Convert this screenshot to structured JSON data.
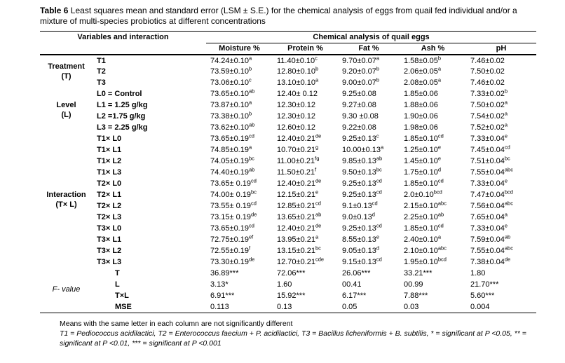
{
  "colors": {
    "background": "#ffffff",
    "text": "#000000",
    "rule": "#000000"
  },
  "caption": {
    "label": "Table 6",
    "text": " Least squares mean and standard error (LSM ± S.E.) for the chemical analysis of eggs from quail fed individual and/or a mixture of multi-species probiotics at different concentrations"
  },
  "header": {
    "variables": "Variables and interaction",
    "group": "Chemical analysis of quail eggs",
    "columns": [
      "Moisture %",
      "Protein %",
      "Fat %",
      "Ash %",
      "pH"
    ]
  },
  "groups": [
    {
      "label_lines": [
        "Treatment",
        "(T)"
      ],
      "rows": [
        {
          "label": "T1",
          "cells": [
            [
              "74.24±0.10",
              "a"
            ],
            [
              "11.40±0.10",
              "c"
            ],
            [
              "9.70±0.07",
              "a"
            ],
            [
              "1.58±0.05",
              "b"
            ],
            [
              "7.46±0.02",
              ""
            ]
          ]
        },
        {
          "label": "T2",
          "cells": [
            [
              "73.59±0.10",
              "b"
            ],
            [
              "12.80±0.10",
              "b"
            ],
            [
              "9.20±0.07",
              "b"
            ],
            [
              "2.06±0.05",
              "a"
            ],
            [
              "7.50±0.02",
              ""
            ]
          ]
        },
        {
          "label": "T3",
          "cells": [
            [
              "73.06±0.10",
              "c"
            ],
            [
              "13.10±0.10",
              "a"
            ],
            [
              "9.00±0.07",
              "b"
            ],
            [
              "2.08±0.05",
              "a"
            ],
            [
              "7.46±0.02",
              ""
            ]
          ]
        }
      ]
    },
    {
      "label_lines": [
        "Level",
        "(L)"
      ],
      "rows": [
        {
          "label": "L0 = Control",
          "cells": [
            [
              "73.65±0.10",
              "ab"
            ],
            [
              "12.40± 0.12",
              ""
            ],
            [
              "9.25±0.08",
              ""
            ],
            [
              "1.85±0.06",
              ""
            ],
            [
              "7.33±0.02",
              "b"
            ]
          ]
        },
        {
          "label": "L1 = 1.25 g/kg",
          "cells": [
            [
              "73.87±0.10",
              "a"
            ],
            [
              "12.30±0.12",
              ""
            ],
            [
              "9.27±0.08",
              ""
            ],
            [
              "1.88±0.06",
              ""
            ],
            [
              "7.50±0.02",
              "a"
            ]
          ]
        },
        {
          "label": "L2 =1.75 g/kg",
          "cells": [
            [
              "73.38±0.10",
              "b"
            ],
            [
              "12.30±0.12",
              ""
            ],
            [
              "9.30 ±0.08",
              ""
            ],
            [
              "1.90±0.06",
              ""
            ],
            [
              "7.54±0.02",
              "a"
            ]
          ]
        },
        {
          "label": "L3 = 2.25 g/kg",
          "cells": [
            [
              "73.62±0.10",
              "ab"
            ],
            [
              "12.60±0.12",
              ""
            ],
            [
              "9.22±0.08",
              ""
            ],
            [
              "1.98±0.06",
              ""
            ],
            [
              "7.52±0.02",
              "a"
            ]
          ]
        }
      ]
    },
    {
      "label_lines": [
        "Interaction",
        "(T× L)"
      ],
      "rows": [
        {
          "label": "T1× L0",
          "cells": [
            [
              "73.65±0.19",
              "cd"
            ],
            [
              "12.40±0.21",
              "de"
            ],
            [
              "9.25±0.13",
              "c"
            ],
            [
              "1.85±0.10",
              "cd"
            ],
            [
              "7.33±0.04",
              "e"
            ]
          ]
        },
        {
          "label": "T1× L1",
          "cells": [
            [
              "74.85±0.19",
              "a"
            ],
            [
              "10.70±0.21",
              "g"
            ],
            [
              "10.00±0.13",
              "a"
            ],
            [
              "1.25±0.10",
              "e"
            ],
            [
              "7.45±0.04",
              "cd"
            ]
          ]
        },
        {
          "label": "T1× L2",
          "cells": [
            [
              "74.05±0.19",
              "bc"
            ],
            [
              "11.00±0.21",
              "fg"
            ],
            [
              "9.85±0.13",
              "ab"
            ],
            [
              "1.45±0.10",
              "e"
            ],
            [
              "7.51±0.04",
              "bc"
            ]
          ]
        },
        {
          "label": "T1× L3",
          "cells": [
            [
              "74.40±0.19",
              "ab"
            ],
            [
              "11.50±0.21",
              "f"
            ],
            [
              "9.50±0.13",
              "bc"
            ],
            [
              "1.75±0.10",
              "d"
            ],
            [
              "7.55±0.04",
              "abc"
            ]
          ]
        },
        {
          "label": "T2× L0",
          "cells": [
            [
              "73.65± 0.19",
              "cd"
            ],
            [
              "12.40±0.21",
              "de"
            ],
            [
              "9.25±0.13",
              "cd"
            ],
            [
              "1.85±0.10",
              "cd"
            ],
            [
              "7.33±0.04",
              "e"
            ]
          ]
        },
        {
          "label": "T2× L1",
          "cells": [
            [
              "74.00± 0.19",
              "bc"
            ],
            [
              "12.15±0.21",
              "e"
            ],
            [
              "9.25±0.13",
              "cd"
            ],
            [
              "2.0±0.10",
              "bcd"
            ],
            [
              "7.47±0.04",
              "bcd"
            ]
          ]
        },
        {
          "label": "T2× L2",
          "cells": [
            [
              "73.55± 0.19",
              "cd"
            ],
            [
              "12.85±0.21",
              "cd"
            ],
            [
              "9.1±0.13",
              "cd"
            ],
            [
              "2.15±0.10",
              "abc"
            ],
            [
              "7.56±0.04",
              "abc"
            ]
          ]
        },
        {
          "label": "T2× L3",
          "cells": [
            [
              "73.15± 0.19",
              "de"
            ],
            [
              "13.65±0.21",
              "ab"
            ],
            [
              "9.0±0.13",
              "d"
            ],
            [
              "2.25±0.10",
              "ab"
            ],
            [
              "7.65±0.04",
              "a"
            ]
          ]
        },
        {
          "label": "T3× L0",
          "cells": [
            [
              "73.65±0.19",
              "cd"
            ],
            [
              "12.40±0.21",
              "de"
            ],
            [
              "9.25±0.13",
              "cd"
            ],
            [
              "1.85±0.10",
              "cd"
            ],
            [
              "7.33±0.04",
              "e"
            ]
          ]
        },
        {
          "label": "T3× L1",
          "cells": [
            [
              "72.75±0.19",
              "ef"
            ],
            [
              "13.95±0.21",
              "a"
            ],
            [
              "8.55±0.13",
              "e"
            ],
            [
              "2.40±0.10",
              "a"
            ],
            [
              "7.59±0.04",
              "ab"
            ]
          ]
        },
        {
          "label": "T3× L2",
          "cells": [
            [
              "72.55±0.19",
              "f"
            ],
            [
              "13.15±0.21",
              "bc"
            ],
            [
              "9.05±0.13",
              "d"
            ],
            [
              "2.10±0.10",
              "abc"
            ],
            [
              "7.55±0.04",
              "abc"
            ]
          ]
        },
        {
          "label": "T3× L3",
          "cells": [
            [
              "73.30±0.19",
              "de"
            ],
            [
              "12.70±0.21",
              "cde"
            ],
            [
              "9.15±0.13",
              "cd"
            ],
            [
              "1.95±0.10",
              "bcd"
            ],
            [
              "7.38±0.04",
              "de"
            ]
          ]
        }
      ]
    },
    {
      "label_lines": [
        "F- value"
      ],
      "italic": true,
      "indent": true,
      "rows": [
        {
          "label": "T",
          "cells": [
            [
              "36.89***",
              ""
            ],
            [
              "72.06***",
              ""
            ],
            [
              "26.06***",
              ""
            ],
            [
              "33.21***",
              ""
            ],
            [
              "1.80",
              ""
            ]
          ]
        },
        {
          "label": "L",
          "cells": [
            [
              "3.13*",
              ""
            ],
            [
              "1.60",
              ""
            ],
            [
              "00.41",
              ""
            ],
            [
              "00.99",
              ""
            ],
            [
              "21.70***",
              ""
            ]
          ]
        },
        {
          "label": "T×L",
          "cells": [
            [
              "6.91***",
              ""
            ],
            [
              "15.92***",
              ""
            ],
            [
              "6.17***",
              ""
            ],
            [
              "7.88***",
              ""
            ],
            [
              "5.60***",
              ""
            ]
          ]
        },
        {
          "label": "MSE",
          "cells": [
            [
              "0.113",
              ""
            ],
            [
              "0.13",
              ""
            ],
            [
              "0.05",
              ""
            ],
            [
              "0.03",
              ""
            ],
            [
              "0.004",
              ""
            ]
          ]
        }
      ]
    }
  ],
  "footnotes": [
    "Means with the same letter in each column are not significantly different",
    "T1 = Pediococcus acidilactici, T2 = Enterococcus faecium + P. acidilactici, T3 = Bacillus licheniformis + B. subtilis, * = significant at P <0.05, ** = significant at P <0.01, *** = significant at P <0.001"
  ]
}
